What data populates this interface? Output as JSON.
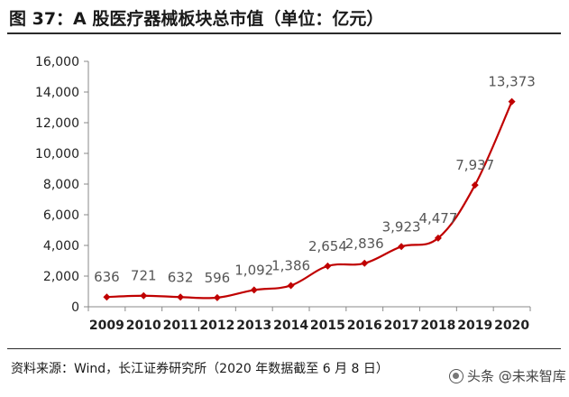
{
  "chart_data": {
    "type": "line",
    "title": "图 37：A 股医疗器械板块总市值（单位：亿元）",
    "categories": [
      "2009",
      "2010",
      "2011",
      "2012",
      "2013",
      "2014",
      "2015",
      "2016",
      "2017",
      "2018",
      "2019",
      "2020"
    ],
    "values": [
      636,
      721,
      632,
      596,
      1092,
      1386,
      2654,
      2836,
      3923,
      4477,
      7937,
      13373
    ],
    "data_labels": [
      "636",
      "721",
      "632",
      "596",
      "1,092",
      "1,386",
      "2,654",
      "2,836",
      "3,923",
      "4,477",
      "7,937",
      "13,373"
    ],
    "yticks": [
      0,
      2000,
      4000,
      6000,
      8000,
      10000,
      12000,
      14000,
      16000
    ],
    "ytick_labels": [
      "0",
      "2,000",
      "4,000",
      "6,000",
      "8,000",
      "10,000",
      "12,000",
      "14,000",
      "16,000"
    ],
    "ylim": [
      0,
      16000
    ],
    "xlabel": "",
    "ylabel": "",
    "grid": false,
    "series_color": "#c00000"
  },
  "source": "资料来源：Wind，长江证券研究所（2020 年数据截至 6 月 8 日）",
  "watermark": "头条 @未来智库"
}
